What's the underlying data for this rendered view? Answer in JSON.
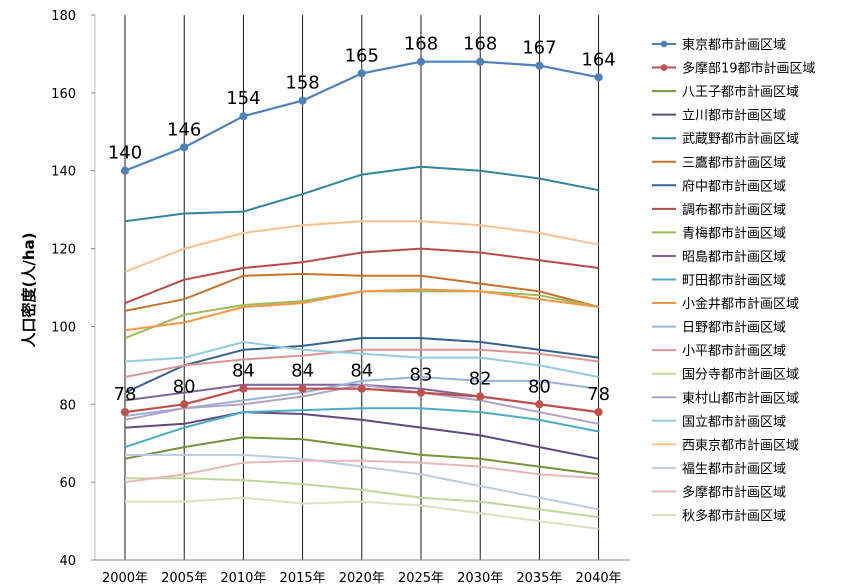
{
  "chart_data": {
    "type": "line",
    "title": "",
    "xlabel": "",
    "ylabel": "人口密度(人/ha)",
    "ylim": [
      40,
      180
    ],
    "yticks": [
      "40",
      "60",
      "80",
      "100",
      "120",
      "140",
      "160",
      "180"
    ],
    "categories": [
      "2000年",
      "2005年",
      "2010年",
      "2015年",
      "2020年",
      "2025年",
      "2030年",
      "2035年",
      "2040年"
    ],
    "grid": "vertical",
    "legend_position": "right",
    "series": [
      {
        "name": "東京都市計画区域",
        "color": "#4F81BD",
        "markers": true,
        "labels": true,
        "values": [
          140,
          146,
          154,
          158,
          165,
          168,
          168,
          167,
          164
        ]
      },
      {
        "name": "多摩部19都市計画区域",
        "color": "#C0504D",
        "markers": true,
        "labels": true,
        "values": [
          78,
          80,
          84,
          84,
          84,
          83,
          82,
          80,
          78
        ]
      },
      {
        "name": "八王子都市計画区域",
        "color": "#77933C",
        "values": [
          66,
          69,
          71.5,
          71,
          69,
          67,
          66,
          64,
          62
        ]
      },
      {
        "name": "立川都市計画区域",
        "color": "#604A7B",
        "values": [
          74,
          75,
          78,
          77.5,
          76,
          74,
          72,
          69,
          66
        ]
      },
      {
        "name": "武蔵野都市計画区域",
        "color": "#31859C",
        "values": [
          127,
          129,
          129.5,
          134,
          139,
          141,
          140,
          138,
          135
        ]
      },
      {
        "name": "三鷹都市計画区域",
        "color": "#C8722E",
        "values": [
          104,
          107,
          113,
          113.5,
          113,
          113,
          111,
          109,
          105
        ]
      },
      {
        "name": "府中都市計画区域",
        "color": "#376092",
        "values": [
          83,
          90,
          94,
          95,
          97,
          97,
          96,
          94,
          92
        ]
      },
      {
        "name": "調布都市計画区域",
        "color": "#B74B48",
        "values": [
          106,
          112,
          115,
          116.5,
          119,
          120,
          119,
          117,
          115
        ]
      },
      {
        "name": "青梅都市計画区域",
        "color": "#9BBB59",
        "values": [
          97,
          103,
          105.5,
          106.5,
          109,
          109,
          109,
          108,
          105
        ]
      },
      {
        "name": "昭島都市計画区域",
        "color": "#8064A2",
        "values": [
          81,
          83,
          85,
          85,
          85,
          84,
          82,
          80,
          78
        ]
      },
      {
        "name": "町田都市計画区域",
        "color": "#4BACC6",
        "values": [
          69,
          74,
          78,
          78.5,
          79,
          79,
          78,
          76,
          73
        ]
      },
      {
        "name": "小金井都市計画区域",
        "color": "#F79646",
        "values": [
          99,
          101,
          105,
          106,
          109,
          109.5,
          109,
          107,
          105
        ]
      },
      {
        "name": "日野都市計画区域",
        "color": "#95B3D7",
        "values": [
          77,
          79,
          81,
          83,
          86,
          87,
          86,
          86,
          84
        ]
      },
      {
        "name": "小平都市計画区域",
        "color": "#D99694",
        "values": [
          87,
          90,
          91.5,
          92.5,
          94,
          94,
          94,
          93,
          91
        ]
      },
      {
        "name": "国分寺都市計画区域",
        "color": "#C3D69B",
        "values": [
          61,
          61,
          60.5,
          59.5,
          58,
          56,
          55,
          53,
          51
        ]
      },
      {
        "name": "東村山都市計画区域",
        "color": "#B3A2C7",
        "values": [
          76,
          79,
          80,
          82,
          85,
          83,
          81,
          78,
          75
        ]
      },
      {
        "name": "国立都市計画区域",
        "color": "#93CDDD",
        "values": [
          91,
          92,
          96,
          94,
          93,
          92,
          92,
          90,
          87
        ]
      },
      {
        "name": "西東京都市計画区域",
        "color": "#FAC090",
        "values": [
          114,
          120,
          124,
          126,
          127,
          127,
          126,
          124,
          121
        ]
      },
      {
        "name": "福生都市計画区域",
        "color": "#B9CDE5",
        "values": [
          67,
          67,
          67,
          66,
          64,
          62,
          59,
          56,
          53
        ]
      },
      {
        "name": "多摩都市計画区域",
        "color": "#E6B9B8",
        "values": [
          60,
          62,
          65,
          65.5,
          65.5,
          65,
          64,
          62,
          61
        ]
      },
      {
        "name": "秋多都市計画区域",
        "color": "#D7E4BD",
        "values": [
          55,
          55,
          56,
          54.5,
          55,
          54,
          52,
          50,
          48
        ]
      }
    ]
  }
}
